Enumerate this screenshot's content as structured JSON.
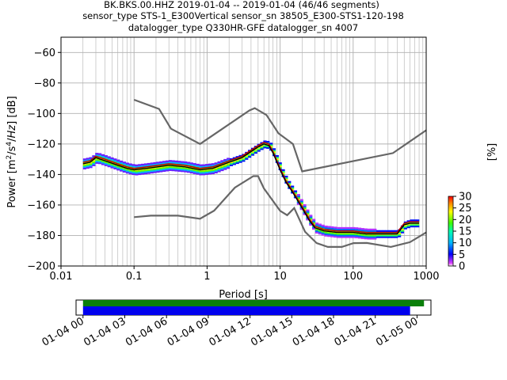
{
  "title_lines": [
    "BK.BKS.00.HHZ   2019-01-04 -- 2019-01-04  (46/46 segments)",
    "sensor_type STS-1_E300Vertical sensor_sn 38505_E300-STS1-120-198",
    "datalogger_type Q330HR-GFE datalogger_sn 4007"
  ],
  "colors": {
    "noise_model": "#666666",
    "mode_line": "#000000",
    "mean_line": "#c00000",
    "coverage_bar": "#0a7f0a",
    "data_bar": "#0000ee",
    "grid": "#b0b0b0"
  },
  "chart_data": [
    {
      "type": "heatmap",
      "xlabel": "Period [s]",
      "ylabel": "Power [m²/s⁴/Hz] [dB]",
      "xscale": "log",
      "xlim": [
        0.01,
        1000
      ],
      "ylim": [
        -200,
        -50
      ],
      "xticks": [
        0.01,
        0.1,
        1,
        10,
        100,
        1000
      ],
      "xtick_labels": [
        "0.01",
        "0.1",
        "1",
        "10",
        "100",
        "1000"
      ],
      "yticks": [
        -200,
        -180,
        -160,
        -140,
        -120,
        -100,
        -80,
        -60
      ],
      "ytick_labels": [
        "−200",
        "−180",
        "−160",
        "−140",
        "−120",
        "−100",
        "−80",
        "−60"
      ],
      "grid": true,
      "colorbar": {
        "label": "[%]",
        "range": [
          0,
          30
        ],
        "ticks": [
          0,
          5,
          10,
          15,
          20,
          25,
          30
        ],
        "tick_labels": [
          "0",
          "5",
          "10",
          "15",
          "20",
          "25",
          "30"
        ],
        "colormap": "pqlx"
      },
      "series": [
        {
          "style": "noise-model-high",
          "x": [
            0.1,
            0.22,
            0.32,
            0.8,
            3.8,
            4.5,
            6.5,
            9.5,
            15,
            20,
            350,
            1000
          ],
          "y": [
            -91,
            -97,
            -110,
            -120,
            -98,
            -96.5,
            -101,
            -113,
            -120,
            -138,
            -126,
            -111
          ]
        },
        {
          "style": "noise-model-low",
          "x": [
            0.1,
            0.17,
            0.4,
            0.8,
            1.25,
            2.4,
            4.3,
            5,
            6,
            10,
            12.5,
            15.6,
            21.9,
            31.6,
            45,
            70,
            101,
            154,
            328,
            600,
            1000
          ],
          "y": [
            -168,
            -167,
            -167,
            -169,
            -163.7,
            -148.6,
            -141.1,
            -141.1,
            -149.1,
            -163.8,
            -166.7,
            -162,
            -177.5,
            -185,
            -187.5,
            -187.5,
            -185,
            -184.9,
            -187.5,
            -184.4,
            -178
          ]
        },
        {
          "style": "mode",
          "x": [
            0.02,
            0.025,
            0.03,
            0.04,
            0.06,
            0.08,
            0.1,
            0.15,
            0.3,
            0.5,
            0.8,
            1.2,
            2,
            3,
            4,
            5,
            6,
            7,
            8,
            10,
            12,
            15,
            20,
            25,
            30,
            40,
            60,
            100,
            150,
            300,
            400,
            500,
            600,
            800
          ],
          "y": [
            -133,
            -132,
            -129,
            -131,
            -134,
            -136,
            -137,
            -136,
            -134,
            -135,
            -137,
            -136,
            -132,
            -129,
            -125,
            -122,
            -120,
            -121,
            -126,
            -137,
            -145,
            -152,
            -162,
            -170,
            -175,
            -177,
            -178,
            -178,
            -179,
            -179,
            -179,
            -173,
            -172,
            -172
          ]
        },
        {
          "style": "mean",
          "x": [
            0.02,
            0.025,
            0.03,
            0.04,
            0.06,
            0.08,
            0.1,
            0.15,
            0.3,
            0.5,
            0.8,
            1.2,
            2,
            3,
            4,
            5,
            6,
            7,
            8,
            10,
            12,
            15,
            20,
            25,
            30,
            40,
            60,
            100,
            150,
            300,
            400,
            500,
            600,
            800
          ],
          "y": [
            -132,
            -131,
            -128,
            -130,
            -133,
            -135,
            -136,
            -135,
            -133,
            -134,
            -136,
            -135,
            -131,
            -128,
            -124,
            -121,
            -119,
            -120,
            -125,
            -136,
            -144,
            -151,
            -161,
            -169,
            -174,
            -176,
            -177,
            -177,
            -178,
            -178,
            -178,
            -172,
            -171,
            -171
          ]
        }
      ]
    },
    {
      "type": "bar",
      "xlabel": "",
      "ylabel": "",
      "xlim": [
        "2019-01-03 23:30",
        "2019-01-05 01:00"
      ],
      "xticks": [
        "2019-01-04 00:00",
        "2019-01-04 03:00",
        "2019-01-04 06:00",
        "2019-01-04 09:00",
        "2019-01-04 12:00",
        "2019-01-04 15:00",
        "2019-01-04 18:00",
        "2019-01-04 21:00",
        "2019-01-05 00:00"
      ],
      "xtick_labels": [
        "01-04 00",
        "01-04 03",
        "01-04 06",
        "01-04 09",
        "01-04 12",
        "01-04 15",
        "01-04 18",
        "01-04 21",
        "01-05 00"
      ],
      "series": [
        {
          "style": "coverage",
          "start": "2019-01-04 00:00",
          "end": "2019-01-05 00:30"
        },
        {
          "style": "data",
          "start": "2019-01-04 00:00",
          "end": "2019-01-04 23:30"
        }
      ]
    }
  ]
}
